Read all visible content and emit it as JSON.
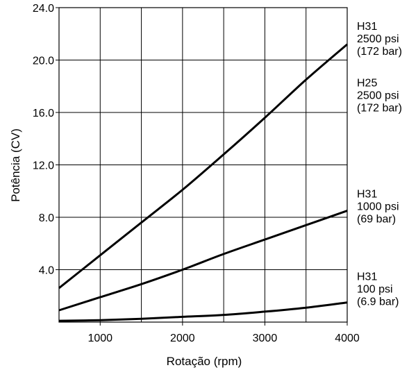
{
  "chart_data": {
    "type": "line",
    "xlabel": "Rotação (rpm)",
    "ylabel": "Potência (CV)",
    "xlim": [
      500,
      4000
    ],
    "ylim": [
      0,
      24
    ],
    "grid": true,
    "x_ticks": [
      {
        "value": 1000,
        "label": "1000"
      },
      {
        "value": 2000,
        "label": "2000"
      },
      {
        "value": 3000,
        "label": "3000"
      },
      {
        "value": 4000,
        "label": "4000"
      }
    ],
    "y_ticks": [
      {
        "value": 4,
        "label": "4.0"
      },
      {
        "value": 8,
        "label": "8.0"
      },
      {
        "value": 12,
        "label": "12.0"
      },
      {
        "value": 16,
        "label": "16.0"
      },
      {
        "value": 20,
        "label": "20.0"
      },
      {
        "value": 24,
        "label": "24.0"
      }
    ],
    "series": [
      {
        "name": "H31 2500 psi (172 bar) / H25 2500 psi (172 bar)",
        "x": [
          500,
          1000,
          1500,
          2000,
          2500,
          3000,
          3500,
          4000
        ],
        "y": [
          2.6,
          5.1,
          7.6,
          10.1,
          12.8,
          15.6,
          18.5,
          21.2
        ]
      },
      {
        "name": "H31 1000 psi (69 bar)",
        "x": [
          500,
          1000,
          1500,
          2000,
          2500,
          3000,
          3500,
          4000
        ],
        "y": [
          0.9,
          1.9,
          2.9,
          4.0,
          5.2,
          6.3,
          7.4,
          8.5
        ]
      },
      {
        "name": "H31 100 psi (6.9 bar)",
        "x": [
          500,
          1000,
          1500,
          2000,
          2500,
          3000,
          3500,
          4000
        ],
        "y": [
          0.1,
          0.15,
          0.25,
          0.4,
          0.55,
          0.8,
          1.1,
          1.5
        ]
      }
    ],
    "annotations": [
      {
        "anchor_y": 22.3,
        "lines": [
          "H31",
          "2500 psi",
          "(172 bar)"
        ]
      },
      {
        "anchor_y": 18.0,
        "lines": [
          "H25",
          "2500 psi",
          "(172 bar)"
        ]
      },
      {
        "anchor_y": 9.5,
        "lines": [
          "H31",
          "1000 psi",
          "(69 bar)"
        ]
      },
      {
        "anchor_y": 3.2,
        "lines": [
          "H31",
          "100 psi",
          "(6.9 bar)"
        ]
      }
    ]
  }
}
